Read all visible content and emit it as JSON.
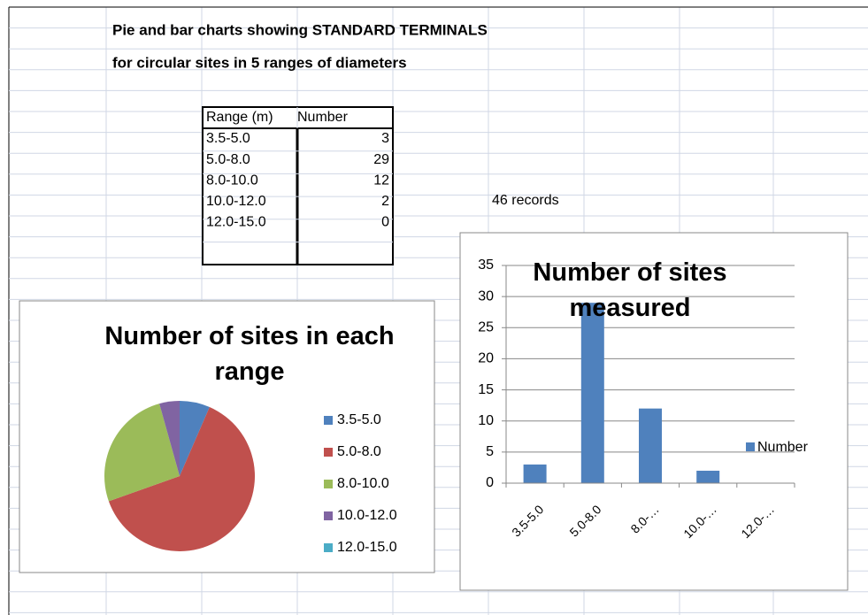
{
  "sheet": {
    "heading": [
      "Pie and bar charts showing STANDARD TERMINALS",
      "for circular sites in 5 ranges of diameters"
    ],
    "table": {
      "header": [
        "Range (m)",
        "Number"
      ],
      "rows": [
        [
          "3.5-5.0",
          3
        ],
        [
          "5.0-8.0",
          29
        ],
        [
          "8.0-10.0",
          12
        ],
        [
          "10.0-12.0",
          2
        ],
        [
          "12.0-15.0",
          0
        ]
      ]
    },
    "note": "46 records"
  },
  "chart_data": [
    {
      "type": "pie",
      "title": "Number of sites in each range",
      "categories": [
        "3.5-5.0",
        "5.0-8.0",
        "8.0-10.0",
        "10.0-12.0",
        "12.0-15.0"
      ],
      "values": [
        3,
        29,
        12,
        2,
        0
      ],
      "colors": [
        "#4f81bd",
        "#c0504d",
        "#9bbb59",
        "#8064a2",
        "#4bacc6"
      ],
      "legend": "right"
    },
    {
      "type": "bar",
      "title": "Number of sites measured",
      "categories": [
        "3.5-5.0",
        "5.0-8.0",
        "8.0-…",
        "10.0-…",
        "12.0-…"
      ],
      "series": [
        {
          "name": "Number",
          "color": "#4f81bd",
          "values": [
            3,
            29,
            12,
            2,
            0
          ]
        }
      ],
      "ylim": [
        0,
        35
      ],
      "yticks": [
        0,
        5,
        10,
        15,
        20,
        25,
        30,
        35
      ],
      "grid": true,
      "legend": "right"
    }
  ]
}
